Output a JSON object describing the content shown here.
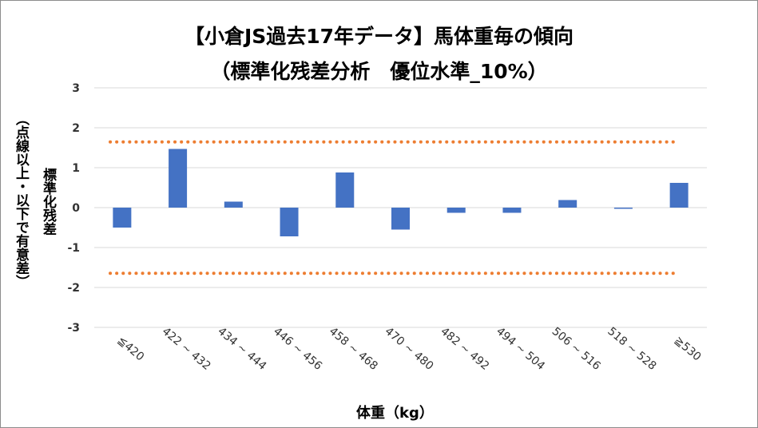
{
  "chart_data": {
    "type": "bar",
    "title": "【小倉JS過去17年データ】馬体重毎の傾向",
    "subtitle": "（標準化残差分析　優位水準_10%）",
    "xlabel": "体重（kg）",
    "ylabel": "標準化残差",
    "ylabel_note": "（点線以上・以下で有意差）",
    "ylim": [
      -3,
      3
    ],
    "yticks": [
      "3",
      "2",
      "1",
      "0",
      "-1",
      "-2",
      "-3"
    ],
    "categories": [
      "≦420",
      "422 ~ 432",
      "434 ~ 444",
      "446 ~ 456",
      "458 ~ 468",
      "470 ~ 480",
      "482 ~ 492",
      "494 ~ 504",
      "506 ~ 516",
      "518 ~ 528",
      "≧530"
    ],
    "values": [
      -0.5,
      1.47,
      0.15,
      -0.72,
      0.88,
      -0.55,
      -0.13,
      -0.13,
      0.19,
      -0.03,
      0.62
    ],
    "thresholds": [
      1.645,
      -1.645
    ],
    "grid": true,
    "bar_color": "#4472c4",
    "threshold_color": "#ed7d31"
  }
}
